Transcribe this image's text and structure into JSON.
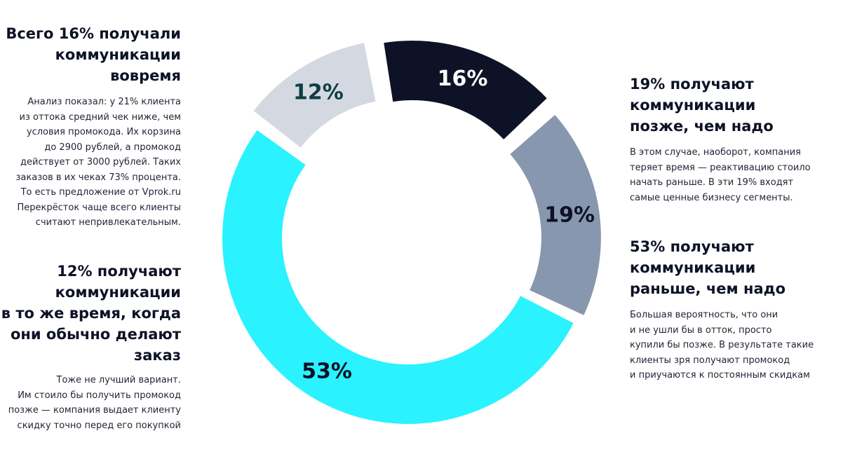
{
  "blocks": {
    "b16": {
      "title": "Всего 16% получали\nкоммуникации\nвовремя",
      "text": "Анализ показал: у 21% клиента\nиз оттока средний чек ниже, чем\nусловия промокода. Их корзина\nдо 2900 рублей, а промокод\nдействует от 3000 рублей. Таких\nзаказов в их чеках 73% процента.\nТо есть предложение от Vprok.ru\nПерекрёсток чаще всего клиенты\nсчитают непривлекательным."
    },
    "b12": {
      "title": "12% получают\nкоммуникации\nв то же время, когда\nони обычно делают\nзаказ",
      "text": "Тоже не лучший вариант.\nИм стоило бы получить промокод\nпозже — компания выдает клиенту\nскидку точно перед его покупкой"
    },
    "b19": {
      "title": "19% получают\nкоммуникации\nпозже, чем надо",
      "text": "В этом случае, наоборот, компания\nтеряет время — реактивацию стоило\nначать раньше. В эти 19% входят\nсамые ценные бизнесу сегменты."
    },
    "b53": {
      "title": "53% получают\nкоммуникации\nраньше, чем надо",
      "text": "Большая вероятность, что они\nи не ушли бы в отток, просто\nкупили бы позже. В результате такие\nклиенты зря получают промокод\nи приучаются к постоянным скидкам"
    }
  },
  "chart_data": {
    "type": "pie",
    "variant": "donut-exploded",
    "slices": [
      {
        "label": "16%",
        "value": 16,
        "color": "#0d1226",
        "text_color": "#ffffff"
      },
      {
        "label": "19%",
        "value": 19,
        "color": "#8797ae",
        "text_color": "#0d1226"
      },
      {
        "label": "53%",
        "value": 53,
        "color": "#2af2ff",
        "text_color": "#0d1226"
      },
      {
        "label": "12%",
        "value": 12,
        "color": "#d4d9e1",
        "text_color": "#0e3e44"
      }
    ]
  }
}
